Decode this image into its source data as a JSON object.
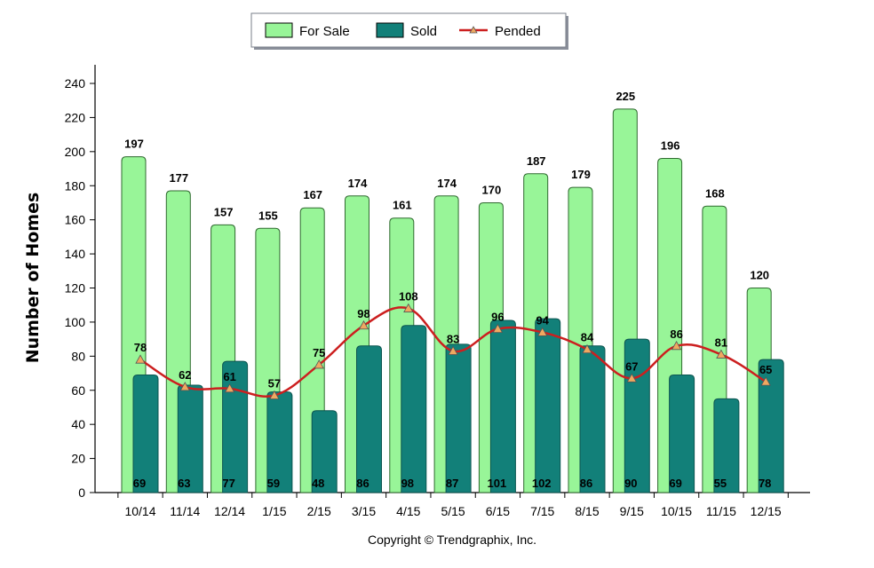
{
  "chart_data": {
    "type": "bar",
    "categories": [
      "10/14",
      "11/14",
      "12/14",
      "1/15",
      "2/15",
      "3/15",
      "4/15",
      "5/15",
      "6/15",
      "7/15",
      "8/15",
      "9/15",
      "10/15",
      "11/15",
      "12/15"
    ],
    "series": [
      {
        "name": "For Sale",
        "kind": "bar",
        "color": "#98f598",
        "values": [
          197,
          177,
          157,
          155,
          167,
          174,
          161,
          174,
          170,
          187,
          179,
          225,
          196,
          168,
          120
        ]
      },
      {
        "name": "Sold",
        "kind": "bar",
        "color": "#128079",
        "values": [
          69,
          63,
          77,
          59,
          48,
          86,
          98,
          87,
          101,
          102,
          86,
          90,
          69,
          55,
          78
        ]
      },
      {
        "name": "Pended",
        "kind": "line",
        "color": "#cc1f1f",
        "marker_color": "#f0a860",
        "values": [
          78,
          62,
          61,
          57,
          75,
          98,
          108,
          83,
          96,
          94,
          84,
          67,
          86,
          81,
          65
        ]
      }
    ],
    "ylabel": "Number of Homes",
    "xlabel": "",
    "ylim": [
      0,
      240
    ],
    "yticks": [
      0,
      20,
      40,
      60,
      80,
      100,
      120,
      140,
      160,
      180,
      200,
      220,
      240
    ],
    "legend_position": "top-center",
    "grid": false
  },
  "legend": {
    "items": [
      {
        "label": "For Sale",
        "swatch": "#98f598"
      },
      {
        "label": "Sold",
        "swatch": "#128079"
      },
      {
        "label": "Pended",
        "swatch": "#cc1f1f"
      }
    ]
  },
  "footer": {
    "copyright": "Copyright © Trendgraphix, Inc."
  }
}
